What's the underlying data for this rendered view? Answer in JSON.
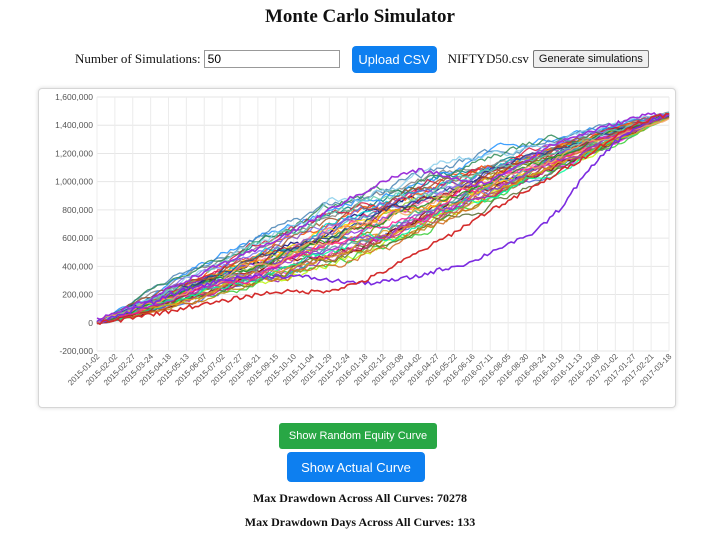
{
  "page": {
    "title": "Monte Carlo Simulator"
  },
  "controls": {
    "num_sims_label": "Number of Simulations:",
    "num_sims_value": "50",
    "upload_label": "Upload CSV",
    "file_name": "NIFTYD50.csv",
    "generate_label": "Generate simulations"
  },
  "buttons": {
    "random_curve_label": "Show Random Equity Curve",
    "actual_curve_label": "Show Actual Curve"
  },
  "stats": {
    "max_drawdown_label": "Max Drawdown Across All Curves:",
    "max_drawdown_value": "70278",
    "max_drawdown_days_label": "Max Drawdown Days Across All Curves:",
    "max_drawdown_days_value": "133"
  },
  "colors": {
    "blue_button": "#0d7ff0",
    "green_button": "#28a745"
  },
  "chart_data": {
    "type": "line",
    "title": "",
    "xlabel": "",
    "ylabel": "",
    "ylim": [
      -200000,
      1600000
    ],
    "y_ticks": [
      -200000,
      0,
      200000,
      400000,
      600000,
      800000,
      1000000,
      1200000,
      1400000,
      1600000
    ],
    "y_tick_labels": [
      "-200,000",
      "0",
      "200,000",
      "400,000",
      "600,000",
      "800,000",
      "1,000,000",
      "1,200,000",
      "1,400,000",
      "1,600,000"
    ],
    "x_tick_labels": [
      "2015-01-02",
      "2015-02-02",
      "2015-02-27",
      "2015-03-24",
      "2015-04-18",
      "2015-05-13",
      "2015-06-07",
      "2015-07-02",
      "2015-07-27",
      "2015-08-21",
      "2015-09-15",
      "2015-10-10",
      "2015-11-04",
      "2015-11-29",
      "2015-12-24",
      "2016-01-18",
      "2016-02-12",
      "2016-03-08",
      "2016-04-02",
      "2016-04-27",
      "2016-05-22",
      "2016-06-16",
      "2016-07-11",
      "2016-08-05",
      "2016-08-30",
      "2016-09-24",
      "2016-10-19",
      "2016-11-13",
      "2016-12-08",
      "2017-01-02",
      "2017-01-27",
      "2017-02-21",
      "2017-03-18"
    ],
    "x_range": [
      "2015-01-02",
      "2017-03-18"
    ],
    "grid": true,
    "legend": "none",
    "series_count": 50,
    "series_start_value": 0,
    "series_end_value": 1470000,
    "band_spread": 230000,
    "series_colors": [
      "#e6194b",
      "#3cb44b",
      "#4363d8",
      "#f58231",
      "#911eb4",
      "#46c6c6",
      "#f032e6",
      "#bcf60c",
      "#fabebe",
      "#008080",
      "#9a6324",
      "#800000",
      "#808000",
      "#000075",
      "#808080",
      "#ffd700",
      "#ff69b4",
      "#1e90ff",
      "#32cd32",
      "#ff4500",
      "#8a2be2",
      "#20b2aa",
      "#dc143c",
      "#556b2f",
      "#b8860b",
      "#4682b4",
      "#d2691e",
      "#9acd32",
      "#c71585",
      "#00ced1",
      "#ff8c00",
      "#6a5acd",
      "#2e8b57",
      "#cd5c5c",
      "#7b68ee",
      "#00fa9a",
      "#b22222",
      "#daa520",
      "#5f9ea0",
      "#ff1493",
      "#228b22",
      "#1e3a8a",
      "#a0522d",
      "#87ceeb",
      "#9932cc",
      "#66cdaa",
      "#f4a460",
      "#708090",
      "#e9967a",
      "#3b3b3b"
    ],
    "highlight_series": [
      {
        "name": "",
        "color": "#9b30d9",
        "values": [
          20000,
          60000,
          120000,
          170000,
          240000,
          300000,
          360000,
          420000,
          470000,
          520000,
          590000,
          650000,
          720000,
          800000,
          870000,
          930000,
          1000000,
          1050000,
          1080000,
          1060000,
          1020000,
          980000,
          1000000,
          1080000,
          1150000,
          1230000,
          1290000,
          1330000,
          1370000,
          1410000,
          1450000,
          1480000,
          1480000
        ]
      },
      {
        "name": "",
        "color": "#7b2be0",
        "values": [
          10000,
          40000,
          90000,
          140000,
          190000,
          240000,
          270000,
          300000,
          320000,
          330000,
          330000,
          330000,
          320000,
          300000,
          290000,
          280000,
          290000,
          310000,
          330000,
          370000,
          400000,
          430000,
          500000,
          560000,
          600000,
          700000,
          820000,
          1000000,
          1150000,
          1280000,
          1370000,
          1430000,
          1480000
        ]
      },
      {
        "name": "",
        "color": "#d42b2b",
        "values": [
          0,
          10000,
          40000,
          60000,
          80000,
          110000,
          130000,
          150000,
          180000,
          200000,
          220000,
          220000,
          220000,
          230000,
          260000,
          300000,
          360000,
          430000,
          500000,
          570000,
          640000,
          720000,
          800000,
          860000,
          930000,
          1000000,
          1080000,
          1150000,
          1240000,
          1320000,
          1400000,
          1450000,
          1480000
        ]
      }
    ]
  }
}
